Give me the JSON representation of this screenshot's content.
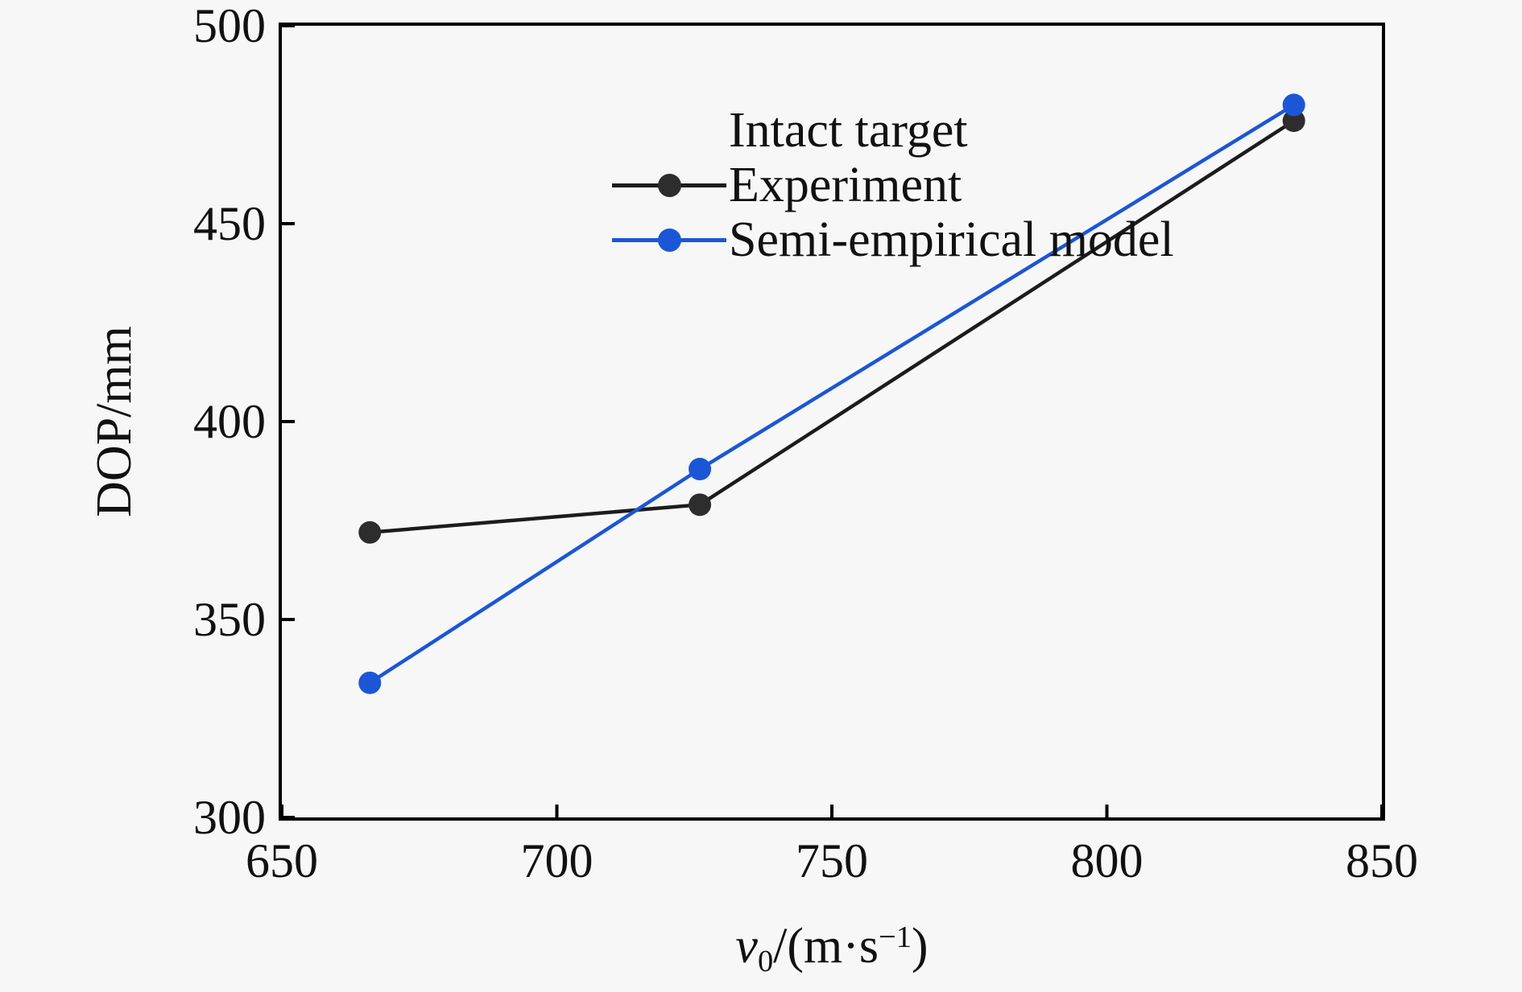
{
  "figure": {
    "background": "#f7f7f7",
    "frame_color": "#000000",
    "text_color": "#111111"
  },
  "chart_data": {
    "type": "line",
    "x": [
      666,
      726,
      834
    ],
    "series": [
      {
        "name": "Experiment",
        "color": "#2d2d2d",
        "line_color": "#1c1c1c",
        "values": [
          372,
          379,
          476
        ]
      },
      {
        "name": "Semi-empirical model",
        "color": "#1b56d6",
        "line_color": "#1b56d6",
        "values": [
          334,
          388,
          480
        ]
      }
    ],
    "legend_title": "Intact target",
    "legend_position": "upper-left",
    "legend_frame": false,
    "grid": false,
    "marker": "circle",
    "ylabel": "DOP/mm",
    "xlabel_parts": {
      "var": "v",
      "sub": "0",
      "mid": "/(m·s",
      "sup": "−1",
      "close": ")"
    },
    "xlim": [
      650,
      850
    ],
    "ylim": [
      300,
      500
    ],
    "xticks": [
      "650",
      "700",
      "750",
      "800",
      "850"
    ],
    "yticks": [
      "300",
      "350",
      "400",
      "450",
      "500"
    ],
    "tick_direction": "in"
  }
}
